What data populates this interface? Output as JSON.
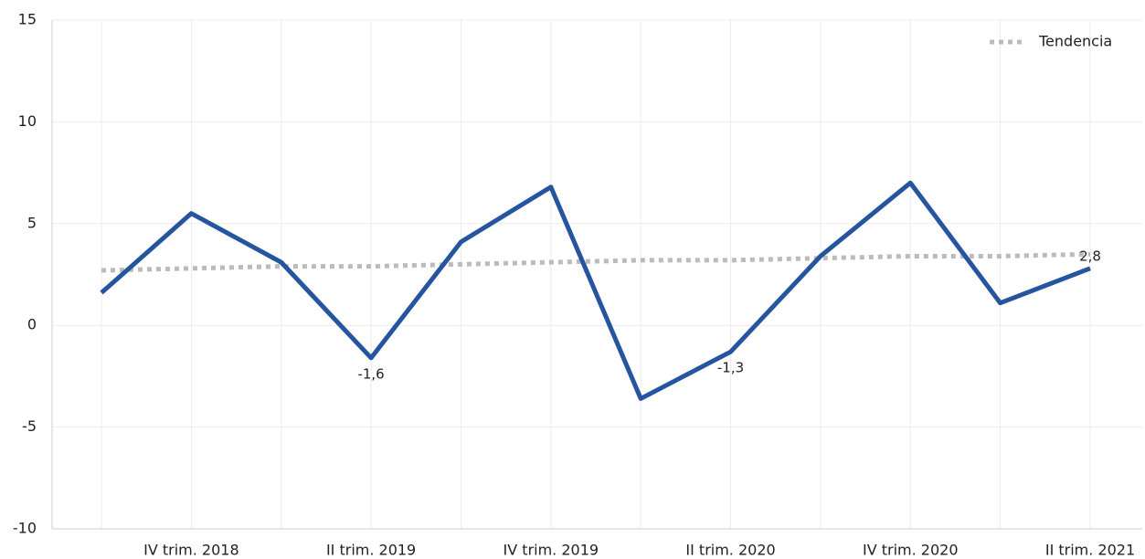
{
  "chart_data": {
    "type": "line",
    "categories": [
      null,
      "IV trim. 2018",
      null,
      "II trim. 2019",
      null,
      "IV trim. 2019",
      null,
      "II trim. 2020",
      null,
      "IV trim. 2020",
      null,
      "II trim. 2021"
    ],
    "series": [
      {
        "color": "#26559f",
        "values": [
          1.6,
          5.5,
          3.1,
          -1.6,
          4.1,
          6.8,
          -3.6,
          -1.3,
          3.4,
          7.0,
          1.1,
          2.8
        ],
        "value_labels": [
          null,
          null,
          null,
          "-1,6",
          null,
          null,
          null,
          "-1,3",
          null,
          null,
          null,
          "2,8"
        ]
      },
      {
        "name": "Tendencia",
        "color": "#bbbbbb",
        "dashed": true,
        "values": [
          2.7,
          2.8,
          2.9,
          2.9,
          3.0,
          3.1,
          3.2,
          3.2,
          3.3,
          3.4,
          3.4,
          3.5
        ]
      }
    ],
    "ylim": [
      -10,
      15
    ],
    "yticks": [
      -10,
      -5,
      0,
      5,
      10,
      15
    ],
    "grid": true,
    "legend": "top-right"
  }
}
